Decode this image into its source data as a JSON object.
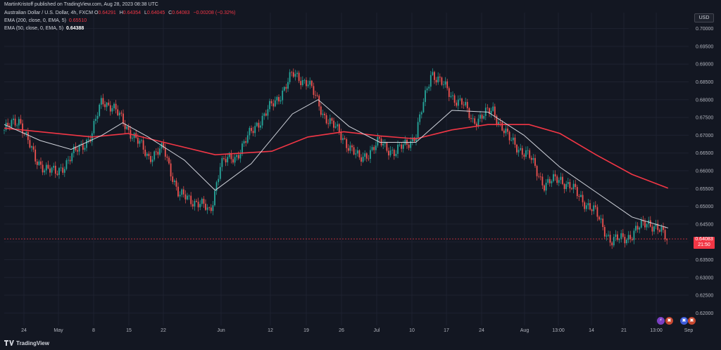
{
  "header": {
    "published": "MartinKristoff published on TradingView.com, Aug 28, 2023 08:38 UTC"
  },
  "legend": {
    "symbol": "Australian Dollar / U.S. Dollar, 4h, FXCM",
    "ohlc": [
      {
        "label": "O",
        "value": "0.64291"
      },
      {
        "label": "H",
        "value": "0.64354"
      },
      {
        "label": "L",
        "value": "0.64045"
      },
      {
        "label": "C",
        "value": "0.64083"
      }
    ],
    "change": "−0.00208 (−0.32%)",
    "ema200": {
      "label": "EMA (200, close, 0, EMA, 5)",
      "value": "0.65510"
    },
    "ema50": {
      "label": "EMA (50, close, 0, EMA, 5)",
      "value": "0.64388"
    }
  },
  "currency_button": "USD",
  "price_tag": {
    "price": "0.64083",
    "countdown": "21:50"
  },
  "footer": {
    "brand": "TradingView"
  },
  "colors": {
    "background": "#131722",
    "up_candle": "#26a69a",
    "down_candle": "#ef5350",
    "ema200": "#f23645",
    "ema50": "#d1d4dc",
    "grid": "#1e2230"
  },
  "events": [
    {
      "name": "lightning-icon",
      "glyph": "⚡",
      "color": "#7b3fc4"
    },
    {
      "name": "flag-icon",
      "glyph": "▣",
      "color": "#c7472f"
    },
    {
      "name": "flag-group-icon",
      "glyph": "▣",
      "color": "#3d5bd9"
    }
  ],
  "chart_data": {
    "type": "candlestick",
    "ylim": [
      0.6175,
      0.7025
    ],
    "y_ticks": [
      "0.70000",
      "0.69500",
      "0.69000",
      "0.68500",
      "0.68000",
      "0.67500",
      "0.67000",
      "0.66500",
      "0.66000",
      "0.65500",
      "0.65000",
      "0.64500",
      "0.64000",
      "0.63500",
      "0.63000",
      "0.62500",
      "0.62000"
    ],
    "x_ticks": [
      "24",
      "May",
      "8",
      "15",
      "22",
      "Jun",
      "12",
      "19",
      "26",
      "Jul",
      "10",
      "17",
      "24",
      "Aug",
      "13:00",
      "14",
      "21",
      "13:00",
      "Sep"
    ],
    "price_line": 0.64083,
    "close_path": [
      {
        "x": "Apr 21",
        "y": 0.6715
      },
      {
        "x": "Apr 24",
        "y": 0.6745
      },
      {
        "x": "Apr 27",
        "y": 0.663
      },
      {
        "x": "May 1",
        "y": 0.659
      },
      {
        "x": "May 4",
        "y": 0.664
      },
      {
        "x": "May 8",
        "y": 0.67
      },
      {
        "x": "May 10",
        "y": 0.68
      },
      {
        "x": "May 12",
        "y": 0.678
      },
      {
        "x": "May 16",
        "y": 0.67
      },
      {
        "x": "May 19",
        "y": 0.664
      },
      {
        "x": "May 22",
        "y": 0.666
      },
      {
        "x": "May 25",
        "y": 0.653
      },
      {
        "x": "May 29",
        "y": 0.651
      },
      {
        "x": "May 31",
        "y": 0.648
      },
      {
        "x": "Jun 2",
        "y": 0.662
      },
      {
        "x": "Jun 5",
        "y": 0.664
      },
      {
        "x": "Jun 9",
        "y": 0.673
      },
      {
        "x": "Jun 13",
        "y": 0.68
      },
      {
        "x": "Jun 16",
        "y": 0.687
      },
      {
        "x": "Jun 19",
        "y": 0.685
      },
      {
        "x": "Jun 22",
        "y": 0.676
      },
      {
        "x": "Jun 26",
        "y": 0.669
      },
      {
        "x": "Jun 29",
        "y": 0.663
      },
      {
        "x": "Jul 3",
        "y": 0.668
      },
      {
        "x": "Jul 6",
        "y": 0.665
      },
      {
        "x": "Jul 10",
        "y": 0.67
      },
      {
        "x": "Jul 13",
        "y": 0.688
      },
      {
        "x": "Jul 17",
        "y": 0.681
      },
      {
        "x": "Jul 19",
        "y": 0.679
      },
      {
        "x": "Jul 21",
        "y": 0.674
      },
      {
        "x": "Jul 25",
        "y": 0.677
      },
      {
        "x": "Jul 28",
        "y": 0.669
      },
      {
        "x": "Aug 1",
        "y": 0.664
      },
      {
        "x": "Aug 4",
        "y": 0.656
      },
      {
        "x": "Aug 7",
        "y": 0.658
      },
      {
        "x": "Aug 10",
        "y": 0.654
      },
      {
        "x": "Aug 14",
        "y": 0.648
      },
      {
        "x": "Aug 17",
        "y": 0.64
      },
      {
        "x": "Aug 21",
        "y": 0.642
      },
      {
        "x": "Aug 24",
        "y": 0.646
      },
      {
        "x": "Aug 28",
        "y": 0.6408
      }
    ],
    "ema200_path": [
      {
        "x": "Apr 21",
        "y": 0.672
      },
      {
        "x": "May 8",
        "y": 0.6695
      },
      {
        "x": "May 15",
        "y": 0.6705
      },
      {
        "x": "May 22",
        "y": 0.668
      },
      {
        "x": "Jun 1",
        "y": 0.6645
      },
      {
        "x": "Jun 12",
        "y": 0.6655
      },
      {
        "x": "Jun 19",
        "y": 0.6695
      },
      {
        "x": "Jun 26",
        "y": 0.671
      },
      {
        "x": "Jul 3",
        "y": 0.6698
      },
      {
        "x": "Jul 10",
        "y": 0.669
      },
      {
        "x": "Jul 17",
        "y": 0.6715
      },
      {
        "x": "Jul 24",
        "y": 0.673
      },
      {
        "x": "Aug 1",
        "y": 0.673
      },
      {
        "x": "Aug 7",
        "y": 0.6705
      },
      {
        "x": "Aug 14",
        "y": 0.6645
      },
      {
        "x": "Aug 21",
        "y": 0.659
      },
      {
        "x": "Aug 28",
        "y": 0.6551
      }
    ],
    "ema50_path": [
      {
        "x": "Apr 21",
        "y": 0.673
      },
      {
        "x": "Apr 28",
        "y": 0.6685
      },
      {
        "x": "May 4",
        "y": 0.666
      },
      {
        "x": "May 10",
        "y": 0.67
      },
      {
        "x": "May 14",
        "y": 0.6735
      },
      {
        "x": "May 19",
        "y": 0.6695
      },
      {
        "x": "May 26",
        "y": 0.663
      },
      {
        "x": "Jun 1",
        "y": 0.6545
      },
      {
        "x": "Jun 8",
        "y": 0.662
      },
      {
        "x": "Jun 16",
        "y": 0.676
      },
      {
        "x": "Jun 21",
        "y": 0.68
      },
      {
        "x": "Jun 27",
        "y": 0.6725
      },
      {
        "x": "Jul 3",
        "y": 0.668
      },
      {
        "x": "Jul 10",
        "y": 0.668
      },
      {
        "x": "Jul 17",
        "y": 0.677
      },
      {
        "x": "Jul 24",
        "y": 0.6765
      },
      {
        "x": "Jul 31",
        "y": 0.67
      },
      {
        "x": "Aug 7",
        "y": 0.661
      },
      {
        "x": "Aug 14",
        "y": 0.654
      },
      {
        "x": "Aug 21",
        "y": 0.647
      },
      {
        "x": "Aug 28",
        "y": 0.6439
      }
    ]
  }
}
